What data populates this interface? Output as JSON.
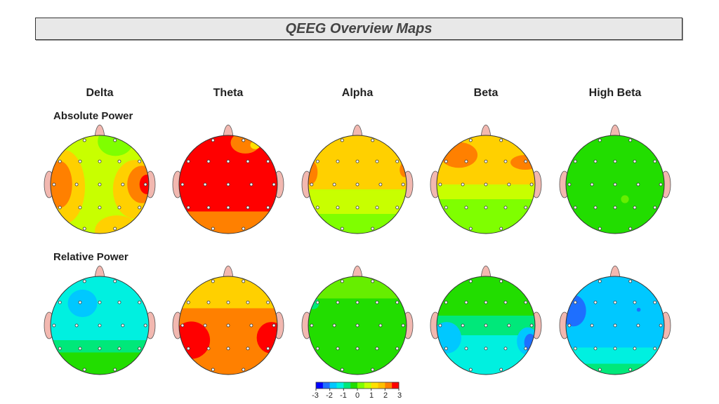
{
  "title": "QEEG Overview Maps",
  "bands": [
    "Delta",
    "Theta",
    "Alpha",
    "Beta",
    "High Beta"
  ],
  "rows": [
    "Absolute Power",
    "Relative Power"
  ],
  "colorbar": {
    "ticks": [
      "-3",
      "-2",
      "-1",
      "0",
      "1",
      "2",
      "3"
    ],
    "range": [
      -3,
      3
    ],
    "colors": [
      "#0000ff",
      "#1e6fff",
      "#00c8ff",
      "#00f0e0",
      "#00e87a",
      "#22dd00",
      "#7fff00",
      "#c8ff00",
      "#ffe000",
      "#ffc000",
      "#ff8000",
      "#ff0000"
    ]
  },
  "maps": {
    "absolute": [
      {
        "band": "Delta",
        "dominant_color": "#c8ff00"
      },
      {
        "band": "Theta",
        "dominant_color": "#ff0000"
      },
      {
        "band": "Alpha",
        "dominant_color": "#ffd000"
      },
      {
        "band": "Beta",
        "dominant_color": "#ffd000"
      },
      {
        "band": "High Beta",
        "dominant_color": "#22dd00"
      }
    ],
    "relative": [
      {
        "band": "Delta",
        "dominant_color": "#00f0e0"
      },
      {
        "band": "Theta",
        "dominant_color": "#ff8000"
      },
      {
        "band": "Alpha",
        "dominant_color": "#22dd00"
      },
      {
        "band": "Beta",
        "dominant_color": "#00e87a"
      },
      {
        "band": "High Beta",
        "dominant_color": "#00c8ff"
      }
    ]
  }
}
